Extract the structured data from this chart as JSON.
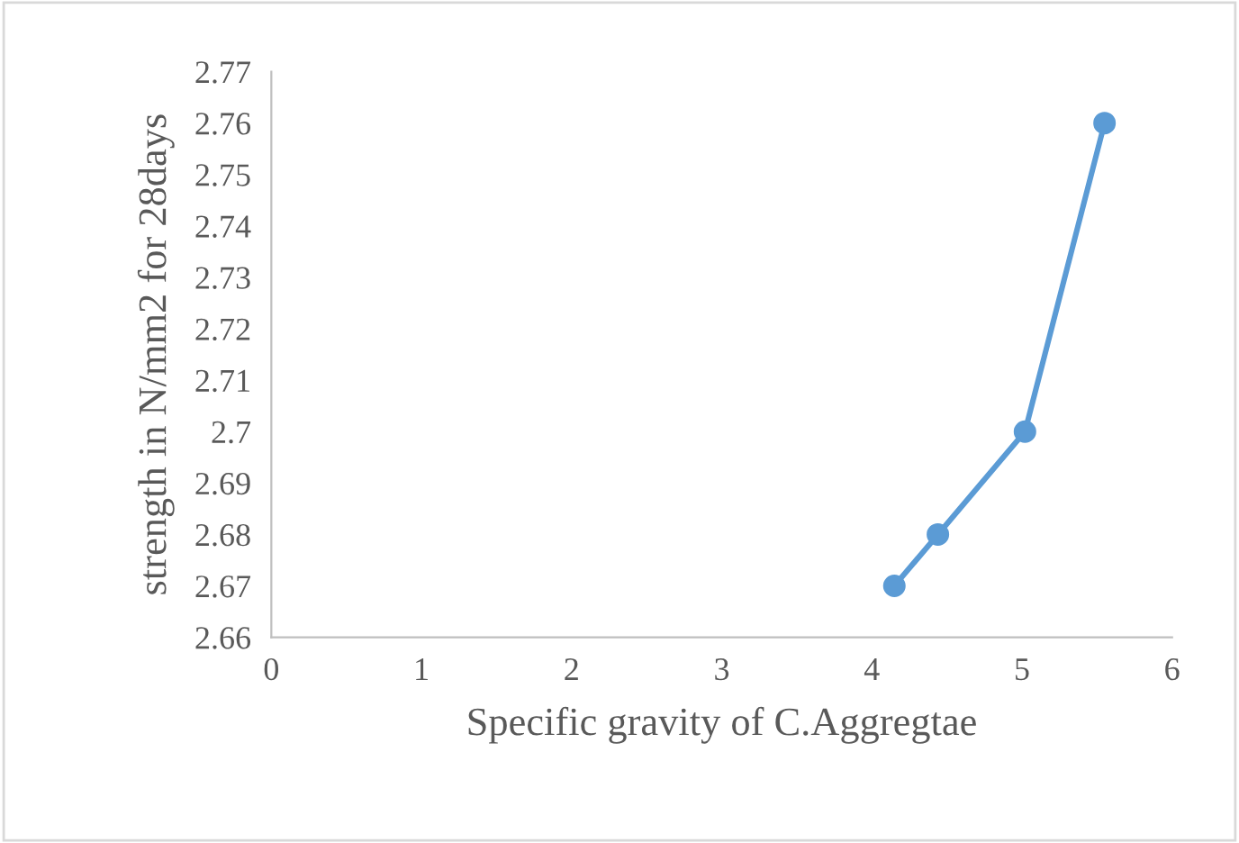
{
  "chart_data": {
    "type": "line",
    "xlabel": "Specific gravity of C.Aggregtae",
    "ylabel": "strength in N/mm2 for 28days",
    "x": [
      4.15,
      4.44,
      5.02,
      5.55
    ],
    "series": [
      {
        "color": "#5b9bd5",
        "values": [
          2.67,
          2.68,
          2.7,
          2.76
        ]
      }
    ],
    "xlim": [
      0,
      6
    ],
    "xticks": [
      0,
      1,
      2,
      3,
      4,
      5,
      6
    ],
    "ylim": [
      2.66,
      2.77
    ],
    "yticks": [
      2.66,
      2.67,
      2.68,
      2.69,
      2.7,
      2.71,
      2.72,
      2.73,
      2.74,
      2.75,
      2.76,
      2.77
    ],
    "grid": false,
    "marker": "circle",
    "line_style": "solid"
  }
}
